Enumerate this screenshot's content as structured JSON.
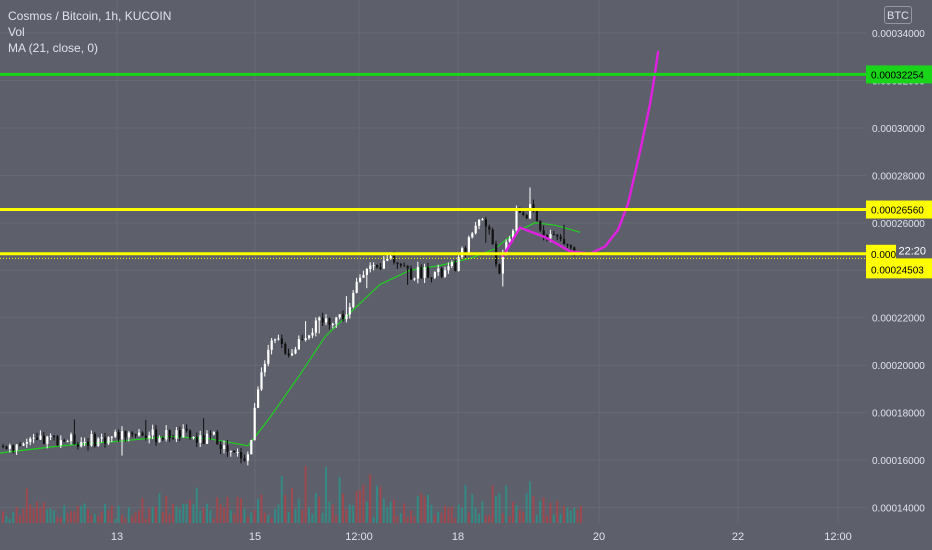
{
  "header": {
    "title": "Cosmos / Bitcoin, 1h, KUCOIN",
    "indicator_vol": "Vol",
    "indicator_ma": "MA (21, close, 0)",
    "currency_badge": "BTC"
  },
  "chart_data": {
    "type": "candlestick",
    "x_tick_labels": [
      "13",
      "15",
      "12:00",
      "18",
      "20",
      "22",
      "12:00"
    ],
    "y_tick_labels": [
      "0.00014000",
      "0.00016000",
      "0.00018000",
      "0.00020000",
      "0.00022000",
      "0.00024000",
      "0.00026000",
      "0.00028000",
      "0.00030000",
      "0.00032000",
      "0.00034000"
    ],
    "y_ticks": [
      0.00014,
      0.00016,
      0.00018,
      0.0002,
      0.00022,
      0.00024,
      0.00026,
      0.00028,
      0.0003,
      0.00032,
      0.00034
    ],
    "ylim": [
      0.0001335,
      0.0003539
    ],
    "hlines": [
      {
        "value": 0.00032254,
        "label": "0.00032254",
        "color": "#19d419"
      },
      {
        "value": 0.0002656,
        "label": "0.00026560",
        "color": "#ffff00"
      },
      {
        "value": 0.00024694,
        "label": "0.00024694",
        "color": "#ffff00"
      }
    ],
    "last_price": {
      "value": 0.00024503,
      "label": "0.00024503",
      "countdown": "22:20"
    },
    "price_path": [
      [
        0,
        0.000166
      ],
      [
        30,
        0.000167
      ],
      [
        55,
        0.000169
      ],
      [
        80,
        0.000168
      ],
      [
        105,
        0.000169
      ],
      [
        130,
        0.000172
      ],
      [
        155,
        0.00017
      ],
      [
        180,
        0.000171
      ],
      [
        200,
        0.000168
      ],
      [
        215,
        0.00017
      ],
      [
        228,
        0.000162
      ],
      [
        248,
        0.000162
      ],
      [
        252,
        0.000175
      ],
      [
        258,
        0.000195
      ],
      [
        265,
        0.000205
      ],
      [
        275,
        0.00021
      ],
      [
        290,
        0.000205
      ],
      [
        300,
        0.000212
      ],
      [
        320,
        0.000218
      ],
      [
        335,
        0.00022
      ],
      [
        348,
        0.000222
      ],
      [
        356,
        0.000235
      ],
      [
        365,
        0.000243
      ],
      [
        372,
        0.00024
      ],
      [
        378,
        0.000238
      ],
      [
        385,
        0.000246
      ],
      [
        395,
        0.000245
      ],
      [
        410,
        0.000238
      ],
      [
        425,
        0.00024
      ],
      [
        440,
        0.000238
      ],
      [
        455,
        0.000242
      ],
      [
        468,
        0.000252
      ],
      [
        478,
        0.000263
      ],
      [
        486,
        0.000258
      ],
      [
        493,
        0.00025
      ],
      [
        498,
        0.000236
      ],
      [
        504,
        0.00025
      ],
      [
        512,
        0.000258
      ],
      [
        518,
        0.000266
      ],
      [
        524,
        0.000262
      ],
      [
        530,
        0.000266
      ],
      [
        538,
        0.000258
      ],
      [
        550,
        0.000255
      ],
      [
        562,
        0.000252
      ],
      [
        572,
        0.000248
      ],
      [
        578,
        0.000245
      ]
    ],
    "ma_path": [
      [
        0,
        0.000163
      ],
      [
        60,
        0.000166
      ],
      [
        120,
        0.000168
      ],
      [
        170,
        0.00017
      ],
      [
        210,
        0.000169
      ],
      [
        248,
        0.000166
      ],
      [
        270,
        0.000178
      ],
      [
        300,
        0.000196
      ],
      [
        325,
        0.000212
      ],
      [
        355,
        0.000224
      ],
      [
        380,
        0.000234
      ],
      [
        410,
        0.00024
      ],
      [
        440,
        0.000242
      ],
      [
        470,
        0.000245
      ],
      [
        495,
        0.000249
      ],
      [
        515,
        0.000256
      ],
      [
        535,
        0.00026
      ],
      [
        555,
        0.000259
      ],
      [
        572,
        0.000257
      ],
      [
        580,
        0.000256
      ]
    ],
    "projection": [
      [
        503,
        0.000246
      ],
      [
        520,
        0.000258
      ],
      [
        545,
        0.000254
      ],
      [
        570,
        0.000248
      ],
      [
        590,
        0.000247
      ],
      [
        605,
        0.00025
      ],
      [
        618,
        0.000257
      ],
      [
        628,
        0.000268
      ],
      [
        640,
        0.00029
      ],
      [
        650,
        0.00031
      ],
      [
        655,
        0.000323
      ],
      [
        658,
        0.000332
      ]
    ],
    "volume_levels": [
      [
        0,
        0.35
      ],
      [
        50,
        0.45
      ],
      [
        100,
        0.3
      ],
      [
        150,
        0.55
      ],
      [
        200,
        0.4
      ],
      [
        250,
        0.5
      ],
      [
        300,
        0.6
      ],
      [
        330,
        0.7
      ],
      [
        360,
        1.0
      ],
      [
        380,
        0.65
      ],
      [
        400,
        0.45
      ],
      [
        430,
        0.6
      ],
      [
        460,
        0.5
      ],
      [
        480,
        0.55
      ],
      [
        500,
        0.75
      ],
      [
        520,
        0.95
      ],
      [
        540,
        0.45
      ],
      [
        580,
        0.3
      ]
    ]
  }
}
